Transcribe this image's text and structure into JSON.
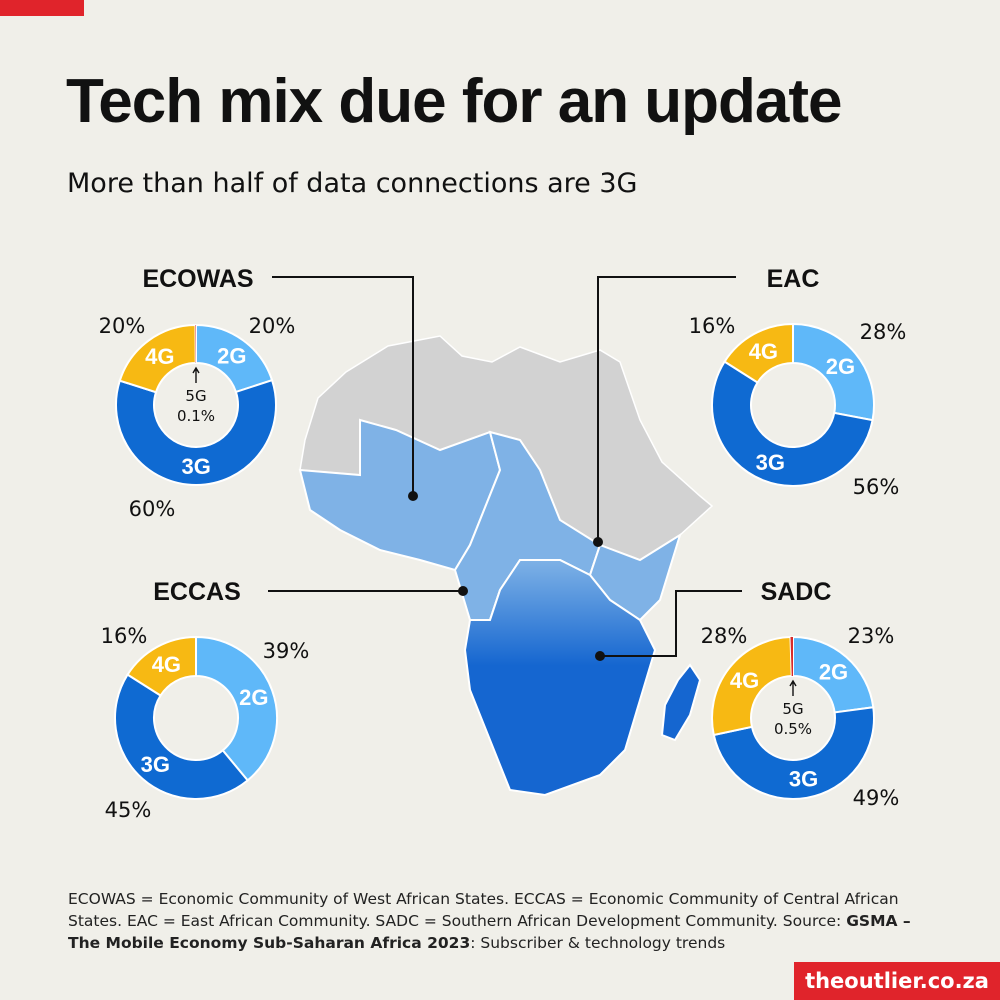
{
  "title": "Tech mix due for an update",
  "subtitle": "More than half of data connections are 3G",
  "colors": {
    "2G": "#5fb8f9",
    "3G": "#0f6ad2",
    "4G": "#f7b913",
    "5G": "#d72a2a",
    "map_grey": "#d2d2d2",
    "map_blue_light": "#7fb2e6",
    "map_blue_dark": "#1566d0"
  },
  "chart_data": [
    {
      "type": "pie",
      "region": "ECOWAS",
      "categories": [
        "2G",
        "3G",
        "4G",
        "5G"
      ],
      "values": [
        20,
        60,
        20,
        0.1
      ],
      "labels": {
        "2G": "20%",
        "3G": "60%",
        "4G": "20%"
      },
      "five_g": {
        "name": "5G",
        "label": "0.1%"
      }
    },
    {
      "type": "pie",
      "region": "EAC",
      "categories": [
        "2G",
        "3G",
        "4G"
      ],
      "values": [
        28,
        56,
        16
      ],
      "labels": {
        "2G": "28%",
        "3G": "56%",
        "4G": "16%"
      }
    },
    {
      "type": "pie",
      "region": "ECCAS",
      "categories": [
        "2G",
        "3G",
        "4G"
      ],
      "values": [
        39,
        45,
        16
      ],
      "labels": {
        "2G": "39%",
        "3G": "45%",
        "4G": "16%"
      }
    },
    {
      "type": "pie",
      "region": "SADC",
      "categories": [
        "2G",
        "3G",
        "4G",
        "5G"
      ],
      "values": [
        23,
        49,
        28,
        0.5
      ],
      "labels": {
        "2G": "23%",
        "3G": "49%",
        "4G": "28%"
      },
      "five_g": {
        "name": "5G",
        "label": "0.5%"
      }
    }
  ],
  "footnote": {
    "definitions": "ECOWAS = Economic Community of West African States. ECCAS = Economic Community of Central African States. EAC = East African Community. SADC = Southern African Development Community.",
    "source_prefix": "Source: ",
    "source_name": "GSMA – The Mobile Economy Sub-Saharan Africa 2023",
    "source_suffix": ": Subscriber & technology trends"
  },
  "brand": "theoutlier.co.za"
}
